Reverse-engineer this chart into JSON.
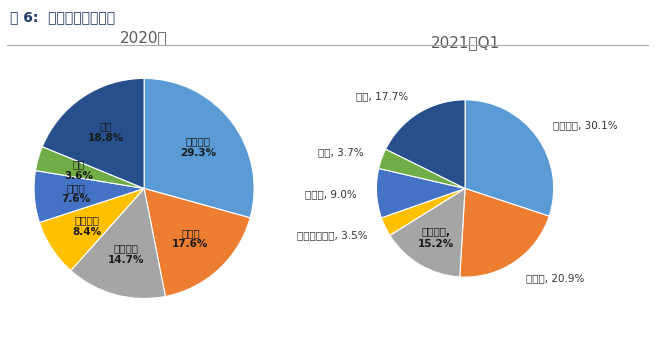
{
  "title": "图 6:  电解液产能市占率",
  "chart1_title": "2020年",
  "chart2_title": "2021年Q1",
  "chart1_labels": [
    "天赐材料",
    "新宙邦",
    "国泰华荣",
    "东莞杉杉",
    "比亚迪",
    "赛纬",
    "其他"
  ],
  "chart1_values": [
    29.3,
    17.6,
    14.7,
    8.4,
    7.6,
    3.6,
    18.8
  ],
  "chart1_colors": [
    "#5B9BD5",
    "#ED7D31",
    "#A5A5A5",
    "#FFC000",
    "#4472C4",
    "#70AD47",
    "#264F8C"
  ],
  "chart2_label_names": [
    "天赐材料",
    "新宙邦",
    "国泰华荣",
    "海容电源材料",
    "比亚迪",
    "赛纬",
    "其他"
  ],
  "chart2_values": [
    30.1,
    20.9,
    15.2,
    3.5,
    9.0,
    3.7,
    17.7
  ],
  "chart2_colors": [
    "#5B9BD5",
    "#ED7D31",
    "#A5A5A5",
    "#FFC000",
    "#4472C4",
    "#70AD47",
    "#264F8C"
  ],
  "background_color": "#FFFFFF",
  "title_color": "#1F3864",
  "subtitle_color": "#595959",
  "title_fontsize": 10,
  "subtitle_fontsize": 11,
  "label_fontsize": 7.5,
  "outer_label_fontsize": 7.5
}
